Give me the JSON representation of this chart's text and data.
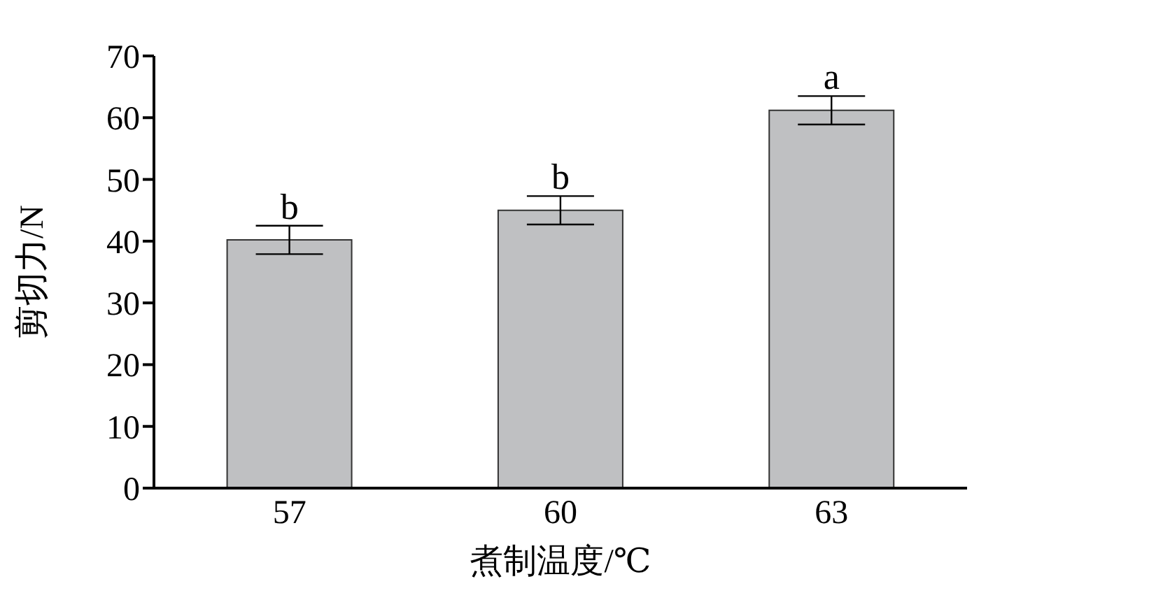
{
  "chart_data": {
    "type": "bar",
    "xlabel": "煮制温度/℃",
    "ylabel": "剪切力/N",
    "categories": [
      "57",
      "60",
      "63"
    ],
    "values": [
      40.2,
      45,
      61.2
    ],
    "errors": [
      2.3,
      2.3,
      2.3
    ],
    "color": "#bfc0c2",
    "ylim": [
      0,
      70
    ],
    "yticks": [
      0,
      10,
      20,
      30,
      40,
      50,
      60,
      70
    ],
    "grid": false,
    "legend": false,
    "annotations": [
      {
        "text": "b",
        "x": "57",
        "y": 42.5
      },
      {
        "text": "b",
        "x": "60",
        "y": 47.3
      },
      {
        "text": "a",
        "x": "63",
        "y": 63.5
      }
    ]
  }
}
